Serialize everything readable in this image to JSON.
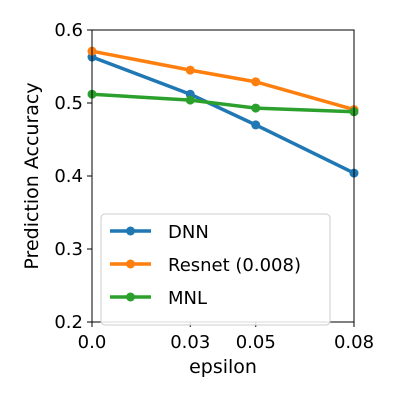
{
  "chart_data": {
    "type": "line",
    "title": "",
    "xlabel": "epsilon",
    "ylabel": "Prediction Accuracy",
    "x": [
      0.0,
      0.03,
      0.05,
      0.08
    ],
    "x_tick_labels": [
      "0.0",
      "0.03",
      "0.05",
      "0.08"
    ],
    "y_ticks": [
      0.2,
      0.3,
      0.4,
      0.5,
      0.6
    ],
    "y_tick_labels": [
      "0.2",
      "0.3",
      "0.4",
      "0.5",
      "0.6"
    ],
    "ylim": [
      0.2,
      0.6
    ],
    "grid": false,
    "legend_position": "lower-left",
    "series": [
      {
        "name": "DNN",
        "color": "#1f77b4",
        "values": [
          0.563,
          0.512,
          0.47,
          0.404
        ]
      },
      {
        "name": "Resnet (0.008)",
        "color": "#ff7f0e",
        "values": [
          0.571,
          0.545,
          0.529,
          0.491
        ]
      },
      {
        "name": "MNL",
        "color": "#2ca02c",
        "values": [
          0.512,
          0.504,
          0.493,
          0.488
        ]
      }
    ]
  }
}
